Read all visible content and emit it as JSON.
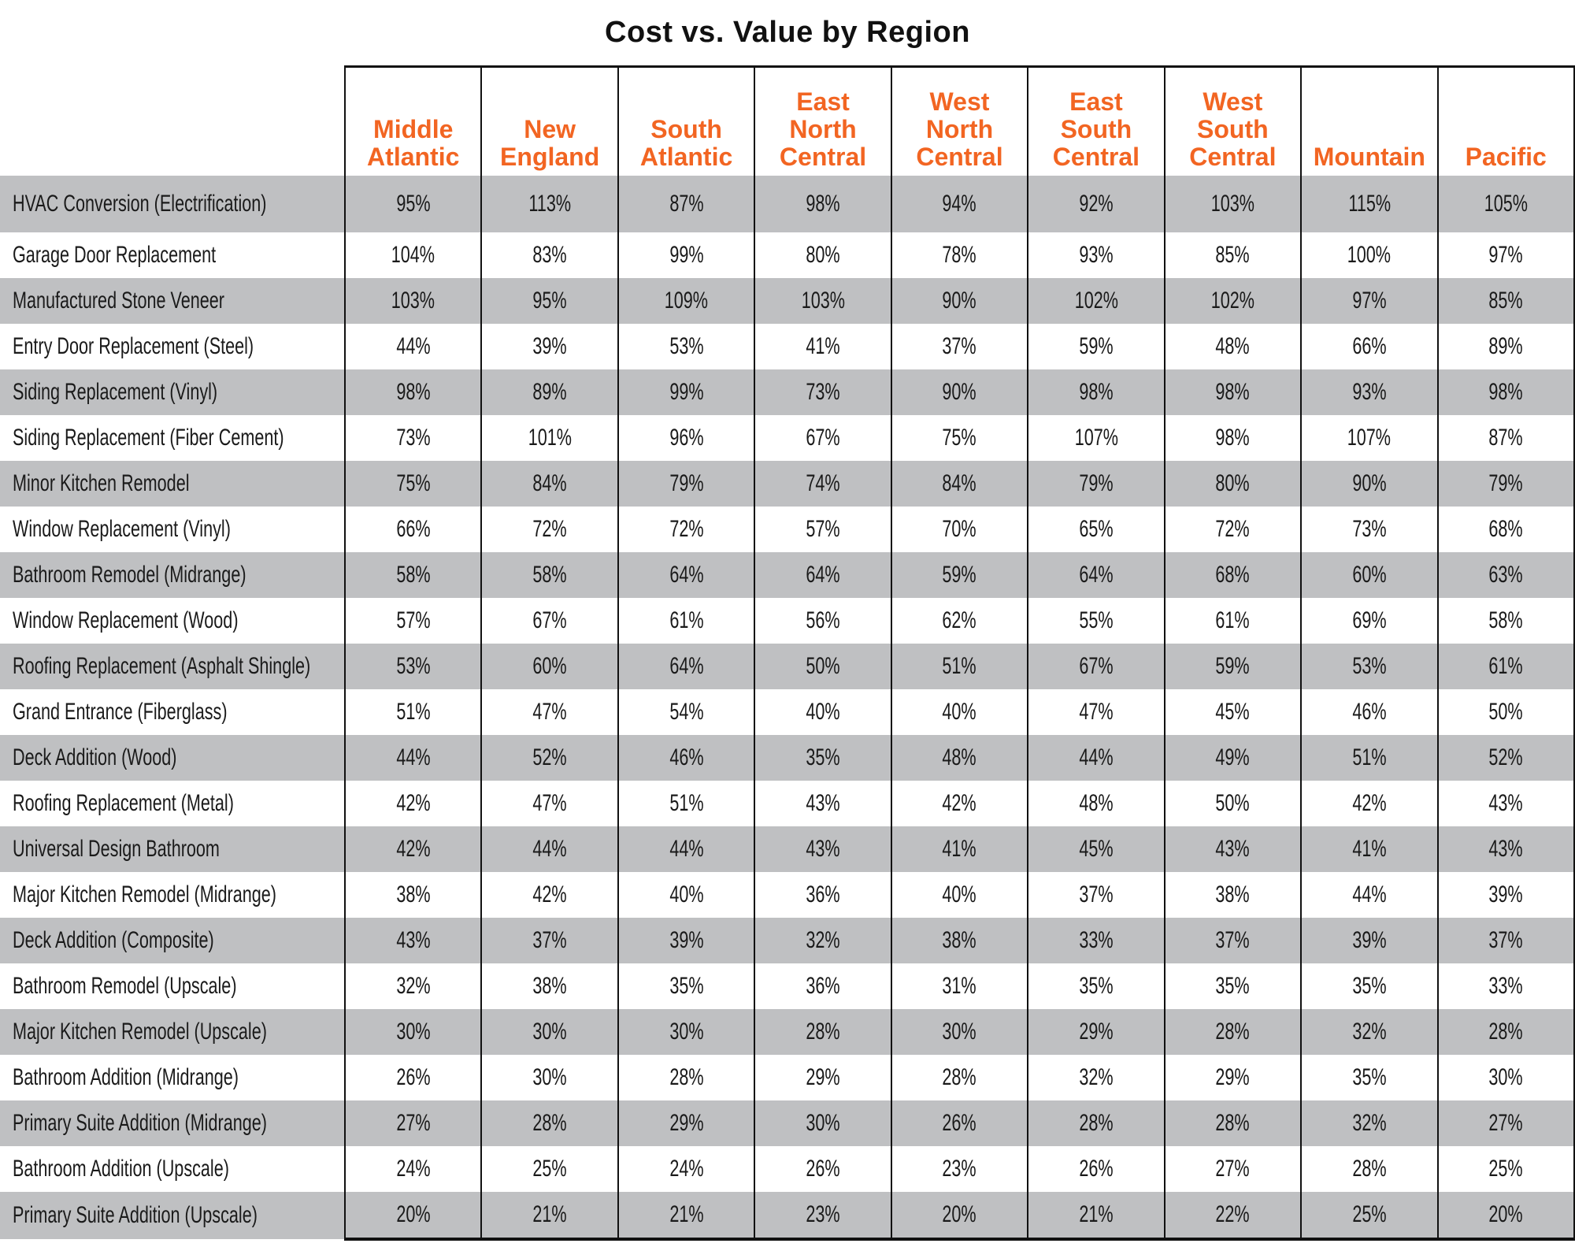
{
  "title": "Cost vs. Value by Region",
  "colors": {
    "header_text": "#f26522",
    "stripe": "#bfc0c2",
    "border": "#111111"
  },
  "regions": [
    [
      "Middle",
      "Atlantic"
    ],
    [
      "New",
      "England"
    ],
    [
      "South",
      "Atlantic"
    ],
    [
      "East",
      "North",
      "Central"
    ],
    [
      "West",
      "North",
      "Central"
    ],
    [
      "East",
      "South",
      "Central"
    ],
    [
      "West",
      "South",
      "Central"
    ],
    [
      "Mountain"
    ],
    [
      "Pacific"
    ]
  ],
  "rows": [
    {
      "project": "HVAC Conversion (Electrification)",
      "values": [
        "95%",
        "113%",
        "87%",
        "98%",
        "94%",
        "92%",
        "103%",
        "115%",
        "105%"
      ]
    },
    {
      "project": "Garage Door Replacement",
      "values": [
        "104%",
        "83%",
        "99%",
        "80%",
        "78%",
        "93%",
        "85%",
        "100%",
        "97%"
      ]
    },
    {
      "project": "Manufactured Stone Veneer",
      "values": [
        "103%",
        "95%",
        "109%",
        "103%",
        "90%",
        "102%",
        "102%",
        "97%",
        "85%"
      ]
    },
    {
      "project": "Entry Door Replacement (Steel)",
      "values": [
        "44%",
        "39%",
        "53%",
        "41%",
        "37%",
        "59%",
        "48%",
        "66%",
        "89%"
      ]
    },
    {
      "project": "Siding Replacement (Vinyl)",
      "values": [
        "98%",
        "89%",
        "99%",
        "73%",
        "90%",
        "98%",
        "98%",
        "93%",
        "98%"
      ]
    },
    {
      "project": "Siding Replacement (Fiber Cement)",
      "values": [
        "73%",
        "101%",
        "96%",
        "67%",
        "75%",
        "107%",
        "98%",
        "107%",
        "87%"
      ]
    },
    {
      "project": "Minor Kitchen Remodel",
      "values": [
        "75%",
        "84%",
        "79%",
        "74%",
        "84%",
        "79%",
        "80%",
        "90%",
        "79%"
      ]
    },
    {
      "project": "Window Replacement (Vinyl)",
      "values": [
        "66%",
        "72%",
        "72%",
        "57%",
        "70%",
        "65%",
        "72%",
        "73%",
        "68%"
      ]
    },
    {
      "project": "Bathroom Remodel (Midrange)",
      "values": [
        "58%",
        "58%",
        "64%",
        "64%",
        "59%",
        "64%",
        "68%",
        "60%",
        "63%"
      ]
    },
    {
      "project": "Window Replacement (Wood)",
      "values": [
        "57%",
        "67%",
        "61%",
        "56%",
        "62%",
        "55%",
        "61%",
        "69%",
        "58%"
      ]
    },
    {
      "project": "Roofing Replacement (Asphalt Shingle)",
      "values": [
        "53%",
        "60%",
        "64%",
        "50%",
        "51%",
        "67%",
        "59%",
        "53%",
        "61%"
      ]
    },
    {
      "project": "Grand Entrance (Fiberglass)",
      "values": [
        "51%",
        "47%",
        "54%",
        "40%",
        "40%",
        "47%",
        "45%",
        "46%",
        "50%"
      ]
    },
    {
      "project": "Deck Addition (Wood)",
      "values": [
        "44%",
        "52%",
        "46%",
        "35%",
        "48%",
        "44%",
        "49%",
        "51%",
        "52%"
      ]
    },
    {
      "project": "Roofing Replacement (Metal)",
      "values": [
        "42%",
        "47%",
        "51%",
        "43%",
        "42%",
        "48%",
        "50%",
        "42%",
        "43%"
      ]
    },
    {
      "project": "Universal Design Bathroom",
      "values": [
        "42%",
        "44%",
        "44%",
        "43%",
        "41%",
        "45%",
        "43%",
        "41%",
        "43%"
      ]
    },
    {
      "project": "Major Kitchen Remodel (Midrange)",
      "values": [
        "38%",
        "42%",
        "40%",
        "36%",
        "40%",
        "37%",
        "38%",
        "44%",
        "39%"
      ]
    },
    {
      "project": "Deck Addition (Composite)",
      "values": [
        "43%",
        "37%",
        "39%",
        "32%",
        "38%",
        "33%",
        "37%",
        "39%",
        "37%"
      ]
    },
    {
      "project": "Bathroom Remodel (Upscale)",
      "values": [
        "32%",
        "38%",
        "35%",
        "36%",
        "31%",
        "35%",
        "35%",
        "35%",
        "33%"
      ]
    },
    {
      "project": "Major Kitchen Remodel (Upscale)",
      "values": [
        "30%",
        "30%",
        "30%",
        "28%",
        "30%",
        "29%",
        "28%",
        "32%",
        "28%"
      ]
    },
    {
      "project": "Bathroom Addition (Midrange)",
      "values": [
        "26%",
        "30%",
        "28%",
        "29%",
        "28%",
        "32%",
        "29%",
        "35%",
        "30%"
      ]
    },
    {
      "project": "Primary Suite Addition (Midrange)",
      "values": [
        "27%",
        "28%",
        "29%",
        "30%",
        "26%",
        "28%",
        "28%",
        "32%",
        "27%"
      ]
    },
    {
      "project": "Bathroom Addition (Upscale)",
      "values": [
        "24%",
        "25%",
        "24%",
        "26%",
        "23%",
        "26%",
        "27%",
        "28%",
        "25%"
      ]
    },
    {
      "project": "Primary Suite Addition (Upscale)",
      "values": [
        "20%",
        "21%",
        "21%",
        "23%",
        "20%",
        "21%",
        "22%",
        "25%",
        "20%"
      ]
    }
  ]
}
